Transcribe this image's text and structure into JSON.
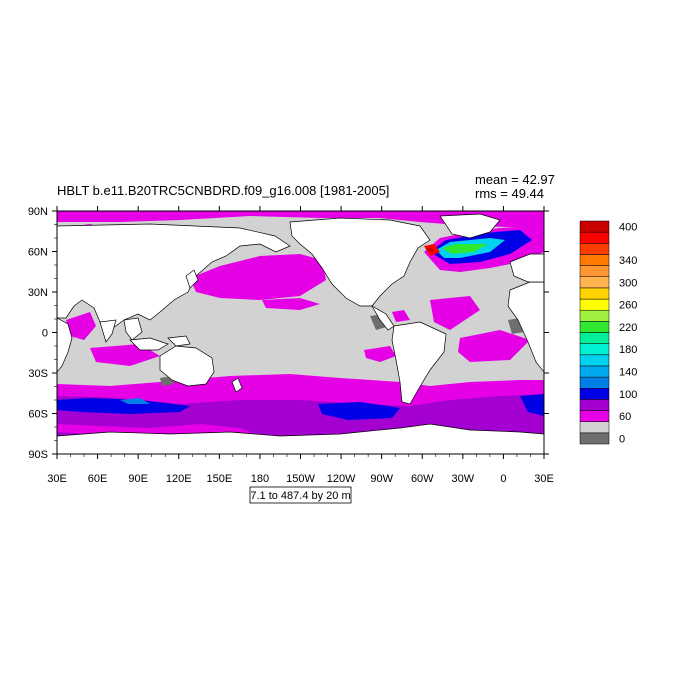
{
  "chart_data": {
    "type": "heatmap",
    "title": "HBLT b.e11.B20TRC5CNBDRD.f09_g16.008 [1981-2005]",
    "stats": {
      "mean": "mean = 42.97",
      "rms": "rms = 49.44"
    },
    "contour_info": "7.1 to 487.4 by 20 m",
    "xlim": [
      30,
      390
    ],
    "ylim": [
      -90,
      90
    ],
    "x_ticks": [
      {
        "value": 30,
        "label": "30E"
      },
      {
        "value": 60,
        "label": "60E"
      },
      {
        "value": 90,
        "label": "90E"
      },
      {
        "value": 120,
        "label": "120E"
      },
      {
        "value": 150,
        "label": "150E"
      },
      {
        "value": 180,
        "label": "180"
      },
      {
        "value": 210,
        "label": "150W"
      },
      {
        "value": 240,
        "label": "120W"
      },
      {
        "value": 270,
        "label": "90W"
      },
      {
        "value": 300,
        "label": "60W"
      },
      {
        "value": 330,
        "label": "30W"
      },
      {
        "value": 360,
        "label": "0"
      },
      {
        "value": 390,
        "label": "30E"
      }
    ],
    "y_ticks": [
      {
        "value": 90,
        "label": "90N"
      },
      {
        "value": 60,
        "label": "60N"
      },
      {
        "value": 30,
        "label": "30N"
      },
      {
        "value": 0,
        "label": "0"
      },
      {
        "value": -30,
        "label": "30S"
      },
      {
        "value": -60,
        "label": "60S"
      },
      {
        "value": -90,
        "label": "90S"
      }
    ],
    "colorbar": {
      "colors": [
        "#6e6e6e",
        "#d2d2d2",
        "#e600e6",
        "#a500d2",
        "#0000e6",
        "#0080e6",
        "#00aaf0",
        "#00d2f0",
        "#00f0d2",
        "#00f09a",
        "#30e830",
        "#a0f040",
        "#ffff00",
        "#ffd200",
        "#ffb450",
        "#ff9632",
        "#ff7800",
        "#ff3c00",
        "#ff0000",
        "#c80000"
      ],
      "labels": [
        {
          "index": 0,
          "text": "0"
        },
        {
          "index": 2,
          "text": "60"
        },
        {
          "index": 4,
          "text": "100"
        },
        {
          "index": 6,
          "text": "140"
        },
        {
          "index": 8,
          "text": "180"
        },
        {
          "index": 10,
          "text": "220"
        },
        {
          "index": 12,
          "text": "260"
        },
        {
          "index": 14,
          "text": "300"
        },
        {
          "index": 16,
          "text": "340"
        },
        {
          "index": 19,
          "text": "400"
        }
      ]
    }
  }
}
